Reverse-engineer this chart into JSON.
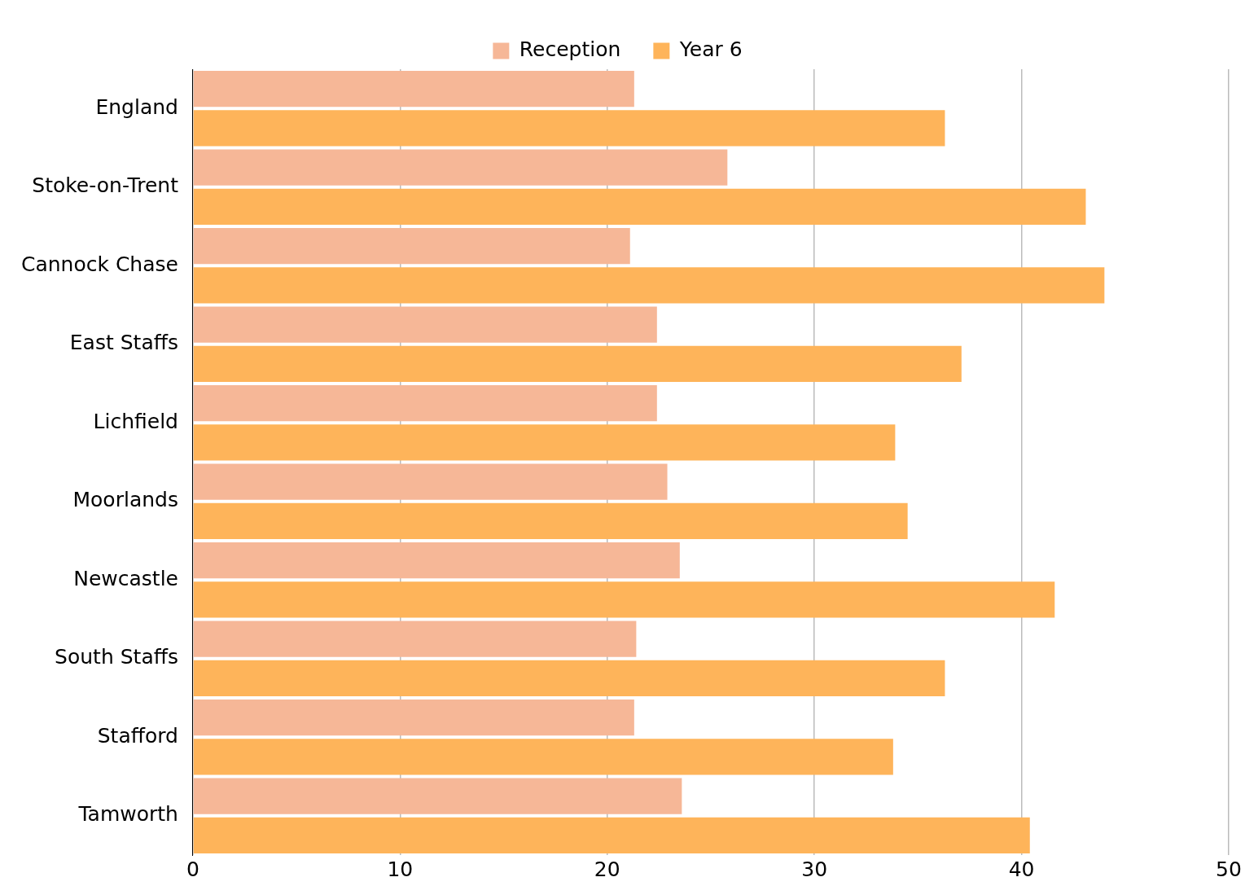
{
  "chart_data": {
    "type": "bar",
    "orientation": "horizontal",
    "categories": [
      "England",
      "Stoke-on-Trent",
      "Cannock Chase",
      "East Staffs",
      "Lichfield",
      "Moorlands",
      "Newcastle",
      "South Staffs",
      "Stafford",
      "Tamworth"
    ],
    "series": [
      {
        "name": "Reception",
        "color": "#f6b797",
        "values": [
          21.3,
          25.8,
          21.1,
          22.4,
          22.4,
          22.9,
          23.5,
          21.4,
          21.3,
          23.6
        ]
      },
      {
        "name": "Year 6",
        "color": "#feb45a",
        "values": [
          36.3,
          43.1,
          44.0,
          37.1,
          33.9,
          34.5,
          41.6,
          36.3,
          33.8,
          40.4
        ]
      }
    ],
    "xlim": [
      0,
      50
    ],
    "xticks": [
      0,
      10,
      20,
      30,
      40,
      50
    ],
    "grid": "x",
    "legend": "top"
  }
}
